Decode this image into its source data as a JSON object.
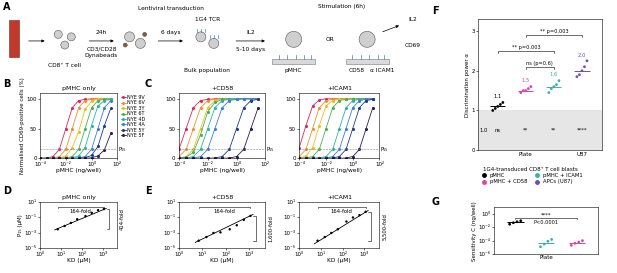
{
  "schematic": {
    "panel": "A",
    "texts": {
      "cd8": "CD8⁺ T cell",
      "t24": "24h",
      "beads1": "CD3/CD28",
      "beads2": "Dynabeads",
      "transduction": "Lentiviral transduction",
      "t6": "6 days",
      "tcr": "1G4 TCR",
      "bulk": "Bulk population",
      "il2": "IL2",
      "t510": "5-10 days",
      "stim": "Stimulation (6h)",
      "pmhc": "pMHC",
      "or": "OR",
      "cd58": "CD58",
      "icam": "α ICAM1",
      "il2b": "IL2",
      "cd69": "CD69"
    }
  },
  "chart_data": [
    {
      "panel": "B",
      "type": "line",
      "title": "pMHC only",
      "xlabel": "pMHC (ng/well)",
      "ylabel": "Normalised CD69-positive cells (%)",
      "log": "x",
      "marker": "o",
      "legend": "upper left",
      "x": [
        0.0001,
        0.000316,
        0.001,
        0.00316,
        0.01,
        0.0316,
        0.1,
        0.316,
        1,
        3.16,
        10,
        31.6
      ],
      "xlim": [
        0.0001,
        100
      ],
      "xticks": [
        {
          "value": 0.0001,
          "label": "10⁻⁴"
        },
        {
          "value": 0.01,
          "label": "10⁻²"
        },
        {
          "value": 1,
          "label": "10⁰"
        },
        {
          "value": 100,
          "label": "10²"
        }
      ],
      "ylim": [
        0,
        110
      ],
      "yticks": [
        0,
        50,
        100
      ],
      "threshold": 15,
      "threshold_label": "P₁₅",
      "series": [
        {
          "name": "NYE 9V",
          "color": "#e0245e",
          "values": [
            0.1,
            0.6,
            3,
            15,
            50,
            85,
            97,
            99,
            100,
            100,
            100,
            100
          ]
        },
        {
          "name": "NYE 6V",
          "color": "#f28e2b",
          "values": [
            0,
            0.1,
            0.6,
            3,
            15,
            50,
            85,
            97,
            99,
            100,
            100,
            100
          ]
        },
        {
          "name": "NYE 3Y",
          "color": "#e8c21a",
          "values": [
            0,
            0,
            0.2,
            0.8,
            4,
            18,
            45,
            82,
            96,
            99,
            100,
            100
          ]
        },
        {
          "name": "NYE 6T",
          "color": "#4caf50",
          "values": [
            0,
            0,
            0,
            0.1,
            0.6,
            3,
            15,
            50,
            85,
            97,
            99,
            100
          ]
        },
        {
          "name": "NYE 4D",
          "color": "#26b5a8",
          "values": [
            0,
            0,
            0,
            0,
            0.2,
            1,
            4,
            18,
            55,
            88,
            97,
            99
          ]
        },
        {
          "name": "NYE 4A",
          "color": "#3b7dd8",
          "values": [
            0,
            0,
            0,
            0,
            0,
            0.1,
            0.6,
            3,
            15,
            50,
            85,
            97
          ]
        },
        {
          "name": "NYE 5Y",
          "color": "#1f3a93",
          "values": [
            0,
            0,
            0,
            0,
            0,
            0,
            0.2,
            1,
            5,
            20,
            55,
            84
          ]
        },
        {
          "name": "NYE 5F",
          "color": "#2b1b5a",
          "values": [
            0,
            0,
            0,
            0,
            0,
            0,
            0,
            0.2,
            1,
            4,
            14,
            42
          ]
        }
      ]
    },
    {
      "panel": "C",
      "type": "line",
      "title": "+CD58",
      "xlabel": "pMHC (ng/well)",
      "log": "x",
      "marker": "o",
      "x": [
        0.0001,
        0.000316,
        0.001,
        0.00316,
        0.01,
        0.0316,
        0.1,
        0.316,
        1,
        3.16,
        10,
        31.6
      ],
      "xlim": [
        0.0001,
        100
      ],
      "xticks": [
        {
          "value": 0.0001,
          "label": "10⁻⁴"
        },
        {
          "value": 0.01,
          "label": "10⁻²"
        },
        {
          "value": 1,
          "label": "10⁰"
        },
        {
          "value": 100,
          "label": "10²"
        }
      ],
      "ylim": [
        0,
        110
      ],
      "yticks": [
        0,
        50,
        100
      ],
      "threshold": 15,
      "threshold_label": "P₁₅",
      "series": [
        {
          "color": "#e0245e",
          "values": [
            15,
            50,
            85,
            97,
            99,
            100,
            100,
            100,
            100,
            100,
            100,
            100
          ]
        },
        {
          "color": "#f28e2b",
          "values": [
            3,
            15,
            50,
            85,
            97,
            99,
            100,
            100,
            100,
            100,
            100,
            100
          ]
        },
        {
          "color": "#e8c21a",
          "values": [
            0.6,
            3,
            15,
            50,
            85,
            97,
            99,
            100,
            100,
            100,
            100,
            100
          ]
        },
        {
          "color": "#4caf50",
          "values": [
            0.4,
            2,
            10,
            40,
            78,
            94,
            99,
            100,
            100,
            100,
            100,
            100
          ]
        },
        {
          "color": "#26b5a8",
          "values": [
            0.1,
            0.6,
            3,
            15,
            50,
            85,
            97,
            99,
            100,
            100,
            100,
            100
          ]
        },
        {
          "color": "#3b7dd8",
          "values": [
            0,
            0.1,
            0.6,
            3,
            15,
            50,
            85,
            97,
            99,
            100,
            100,
            100
          ]
        },
        {
          "color": "#1f3a93",
          "values": [
            0,
            0,
            0,
            0,
            0.1,
            0.6,
            3,
            15,
            50,
            85,
            97,
            99
          ]
        },
        {
          "color": "#2b1b5a",
          "values": [
            0,
            0,
            0,
            0,
            0,
            0,
            0.1,
            0.6,
            3,
            15,
            50,
            85
          ]
        }
      ]
    },
    {
      "type": "line",
      "title": "+ICAM1",
      "xlabel": "pMHC (ng/well)",
      "log": "x",
      "marker": "o",
      "x": [
        0.0001,
        0.000316,
        0.001,
        0.00316,
        0.01,
        0.0316,
        0.1,
        0.316,
        1,
        3.16,
        10,
        31.6
      ],
      "xlim": [
        0.0001,
        100
      ],
      "xticks": [
        {
          "value": 0.0001,
          "label": "10⁻⁴"
        },
        {
          "value": 0.01,
          "label": "10⁻²"
        },
        {
          "value": 1,
          "label": "10⁰"
        },
        {
          "value": 100,
          "label": "10²"
        }
      ],
      "ylim": [
        0,
        110
      ],
      "yticks": [
        0,
        50,
        100
      ],
      "threshold": 15,
      "threshold_label": "P₁₅",
      "series": [
        {
          "color": "#e0245e",
          "values": [
            18,
            55,
            88,
            98,
            100,
            100,
            100,
            100,
            100,
            100,
            100,
            100
          ]
        },
        {
          "color": "#f28e2b",
          "values": [
            3,
            15,
            50,
            85,
            97,
            99,
            100,
            100,
            100,
            100,
            100,
            100
          ]
        },
        {
          "color": "#e8c21a",
          "values": [
            1,
            4,
            18,
            55,
            88,
            97,
            99,
            100,
            100,
            100,
            100,
            100
          ]
        },
        {
          "color": "#4caf50",
          "values": [
            0.1,
            0.6,
            3,
            15,
            50,
            85,
            97,
            99,
            100,
            100,
            100,
            100
          ]
        },
        {
          "color": "#26b5a8",
          "values": [
            0,
            0,
            0.1,
            0.6,
            3,
            15,
            50,
            85,
            97,
            99,
            100,
            100
          ]
        },
        {
          "color": "#3b7dd8",
          "values": [
            0,
            0,
            0,
            0.1,
            0.6,
            3,
            15,
            50,
            85,
            97,
            99,
            100
          ]
        },
        {
          "color": "#1f3a93",
          "values": [
            0,
            0,
            0,
            0,
            0.1,
            0.6,
            3,
            15,
            50,
            85,
            97,
            99
          ]
        },
        {
          "color": "#2b1b5a",
          "values": [
            0,
            0,
            0,
            0,
            0,
            0,
            0.1,
            0.6,
            3,
            15,
            50,
            85
          ]
        }
      ]
    },
    {
      "panel": "D",
      "type": "scatter",
      "title": "pMHC only",
      "xlabel": "KD (μM)",
      "ylabel": "P₁₅ (μM)",
      "log": true,
      "color": "#000000",
      "x": [
        7,
        15,
        30,
        60,
        150,
        300,
        600,
        1150
      ],
      "values": [
        0.003,
        0.008,
        0.02,
        0.06,
        0.15,
        0.4,
        0.9,
        1.24
      ],
      "fit": {
        "x": [
          5,
          1500
        ],
        "y": [
          0.0025,
          1.5
        ]
      },
      "fold_x": "164-fold",
      "fold_y": "414-fold",
      "xlim": [
        1,
        5000
      ],
      "xticks": [
        {
          "value": 1,
          "label": "10⁰"
        },
        {
          "value": 10,
          "label": "10¹"
        },
        {
          "value": 100,
          "label": "10²"
        },
        {
          "value": 1000,
          "label": "10³"
        }
      ],
      "ylim": [
        1e-05,
        10
      ],
      "yticks": [
        {
          "value": 1e-05,
          "label": "10⁻⁵"
        },
        {
          "value": 0.001,
          "label": "10⁻³"
        },
        {
          "value": 0.1,
          "label": "10⁻¹"
        },
        {
          "value": 10,
          "label": "10¹"
        }
      ]
    },
    {
      "panel": "E",
      "type": "scatter",
      "title": "+CD58",
      "xlabel": "KD (μM)",
      "log": true,
      "color": "#000000",
      "x": [
        7,
        15,
        30,
        60,
        150,
        300,
        600,
        1150
      ],
      "values": [
        0.0001,
        0.0003,
        0.001,
        0.0012,
        0.003,
        0.01,
        0.05,
        0.16
      ],
      "fit": {
        "x": [
          5,
          1500
        ],
        "y": [
          6e-05,
          0.25
        ]
      },
      "fold_x": "164-fold",
      "fold_y": "1,600-fold",
      "xlim": [
        1,
        5000
      ],
      "xticks": [
        {
          "value": 1,
          "label": "10⁰"
        },
        {
          "value": 10,
          "label": "10¹"
        },
        {
          "value": 100,
          "label": "10²"
        },
        {
          "value": 1000,
          "label": "10³"
        }
      ],
      "ylim": [
        1e-05,
        10
      ],
      "yticks": [
        {
          "value": 1e-05,
          "label": "10⁻⁵"
        },
        {
          "value": 0.001,
          "label": "10⁻³"
        },
        {
          "value": 0.1,
          "label": "10⁻¹"
        },
        {
          "value": 10,
          "label": "10¹"
        }
      ]
    },
    {
      "type": "scatter",
      "title": "+ICAM1",
      "xlabel": "KD (μM)",
      "log": true,
      "color": "#000000",
      "x": [
        7,
        15,
        30,
        60,
        150,
        300,
        600,
        1150
      ],
      "values": [
        0.0001,
        0.0003,
        0.001,
        0.003,
        0.03,
        0.1,
        0.2,
        0.55
      ],
      "fit": {
        "x": [
          5,
          1500
        ],
        "y": [
          4e-05,
          0.8
        ]
      },
      "fold_x": "164-fold",
      "fold_y": "5,500-fold",
      "xlim": [
        1,
        5000
      ],
      "xticks": [
        {
          "value": 1,
          "label": "10⁰"
        },
        {
          "value": 10,
          "label": "10¹"
        },
        {
          "value": 100,
          "label": "10²"
        },
        {
          "value": 1000,
          "label": "10³"
        }
      ],
      "ylim": [
        1e-05,
        10
      ],
      "yticks": [
        {
          "value": 1e-05,
          "label": "10⁻⁵"
        },
        {
          "value": 0.001,
          "label": "10⁻³"
        },
        {
          "value": 0.1,
          "label": "10⁻¹"
        },
        {
          "value": 10,
          "label": "10¹"
        }
      ]
    },
    {
      "panel": "F",
      "type": "strip",
      "ylabel": "Discrimination power α",
      "categories": [
        null,
        "Plate",
        null,
        "U87"
      ],
      "legend": "upper center",
      "legend_title": "1G4-transduced CD8⁺ T cell blasts",
      "data_labels": true,
      "series": [
        {
          "name": "pMHC",
          "color": "#000000",
          "values": [
            [
              1.0,
              1.05,
              1.1,
              1.15,
              1.2
            ],
            null,
            null,
            null
          ]
        },
        {
          "name": "pMHC + CD58",
          "color": "#e8409a",
          "values": [
            null,
            [
              1.45,
              1.5,
              1.5,
              1.55,
              1.6
            ],
            null,
            null
          ]
        },
        {
          "name": "pMHC + ICAM1",
          "color": "#35b3a8",
          "values": [
            null,
            null,
            [
              1.45,
              1.55,
              1.6,
              1.65,
              1.75
            ],
            null
          ]
        },
        {
          "name": "APCs (U87)",
          "color": "#6a4fc1",
          "values": [
            null,
            null,
            null,
            [
              1.85,
              1.9,
              2.0,
              2.1,
              2.25
            ]
          ]
        }
      ],
      "means": [
        1.1,
        1.5,
        1.6,
        2.0
      ],
      "reference": 1.0,
      "significance": [
        "ns",
        "**",
        "**",
        "****"
      ],
      "brackets": [
        {
          "from": 1,
          "to": 2,
          "y": 2.1,
          "label": "ns",
          "p": "(p=0.6)"
        },
        {
          "from": 0,
          "to": 2,
          "y": 2.5,
          "label": "**",
          "p": "p=0.003"
        },
        {
          "from": 1,
          "to": 3,
          "y": 2.9,
          "label": "**",
          "p": "p=0.003"
        }
      ],
      "ylim": [
        0,
        3.3
      ],
      "yticks": [
        0,
        1,
        2,
        3
      ]
    },
    {
      "panel": "G",
      "type": "strip",
      "ylabel": "Sensitivity C (ng/well)",
      "categories": [
        null,
        "Plate",
        null
      ],
      "log": "y",
      "series": [
        {
          "color": "#000000",
          "values": [
            [
              0.03,
              0.05,
              0.07,
              0.1
            ],
            null,
            null
          ]
        },
        {
          "color": "#35b3a8",
          "values": [
            null,
            [
              1.2e-05,
              3e-05,
              8e-05,
              0.00015
            ],
            null
          ]
        },
        {
          "color": "#e8409a",
          "values": [
            null,
            null,
            [
              2e-05,
              4e-05,
              6e-05,
              0.0001
            ]
          ]
        }
      ],
      "means": [
        0.06,
        5e-05,
        5e-05
      ],
      "brackets": [
        {
          "from": 0,
          "to": 2,
          "y": 0.3,
          "label": "****",
          "p": "P<0.0001"
        }
      ],
      "ylim": [
        1e-06,
        10
      ],
      "yticks": [
        {
          "value": 1e-06,
          "label": "10⁻⁶"
        },
        {
          "value": 0.0001,
          "label": "10⁻⁴"
        },
        {
          "value": 0.01,
          "label": "10⁻²"
        },
        {
          "value": 1,
          "label": "10⁰"
        }
      ]
    }
  ]
}
